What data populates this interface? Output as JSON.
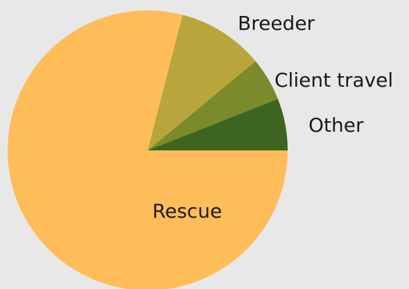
{
  "chart_data": {
    "type": "pie",
    "title": "",
    "slices": [
      {
        "label": "Rescue",
        "value": 79,
        "color": "#ffbd59"
      },
      {
        "label": "Breeder",
        "value": 10,
        "color": "#b8a63c"
      },
      {
        "label": "Client travel",
        "value": 5,
        "color": "#7b8a2a"
      },
      {
        "label": "Other",
        "value": 6,
        "color": "#3d6520"
      }
    ]
  }
}
